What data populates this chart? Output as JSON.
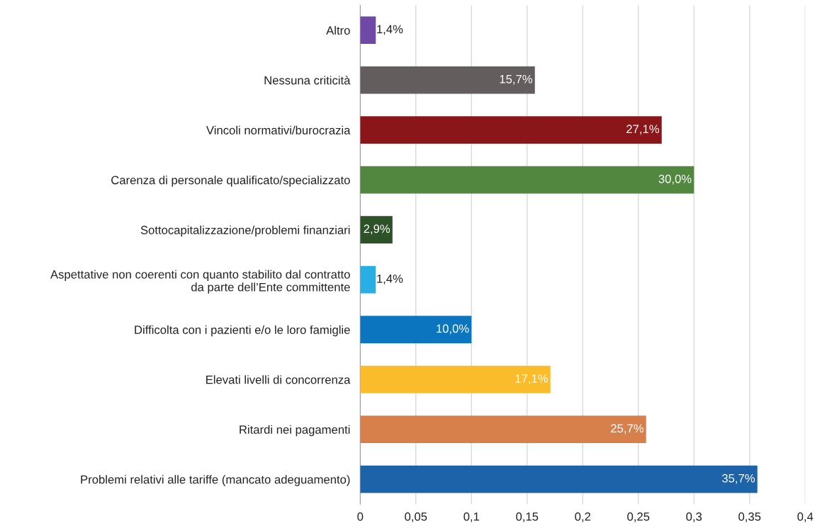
{
  "chart_data": {
    "type": "bar",
    "orientation": "horizontal",
    "categories": [
      "Altro",
      "Nessuna criticità",
      "Vincoli normativi/burocrazia",
      "Carenza di personale qualificato/specializzato",
      "Sottocapitalizzazione/problemi finanziari",
      "Aspettative non coerenti con quanto stabilito dal contratto\nda parte dell’Ente committente",
      "Difficolta con i pazienti e/o le loro famiglie",
      "Elevati livelli di concorrenza",
      "Ritardi nei pagamenti",
      "Problemi relativi alle tariffe (mancato adeguamento)"
    ],
    "values": [
      0.014,
      0.157,
      0.271,
      0.3,
      0.029,
      0.014,
      0.1,
      0.171,
      0.257,
      0.357
    ],
    "value_labels": [
      "1,4%",
      "15,7%",
      "27,1%",
      "30,0%",
      "2,9%",
      "1,4%",
      "10,0%",
      "17,1%",
      "25,7%",
      "35,7%"
    ],
    "colors": [
      "#7048a8",
      "#635d5e",
      "#8b1619",
      "#52873f",
      "#2e5227",
      "#2aaee6",
      "#0b76bf",
      "#fbbc2c",
      "#d7804b",
      "#1c63aa"
    ],
    "xlim": [
      0,
      0.4
    ],
    "xticks": [
      0,
      {
        "value": 0.05,
        "label": "0,05"
      },
      {
        "value": 0.1,
        "label": "0,1"
      },
      {
        "value": 0.15,
        "label": "0,15"
      },
      {
        "value": 0.2,
        "label": "0,2"
      },
      {
        "value": 0.25,
        "label": "0,25"
      },
      {
        "value": 0.3,
        "label": "0,3"
      },
      {
        "value": 0.35,
        "label": "0,35"
      },
      {
        "value": 0.4,
        "label": "0,4"
      }
    ],
    "grid": "x"
  }
}
